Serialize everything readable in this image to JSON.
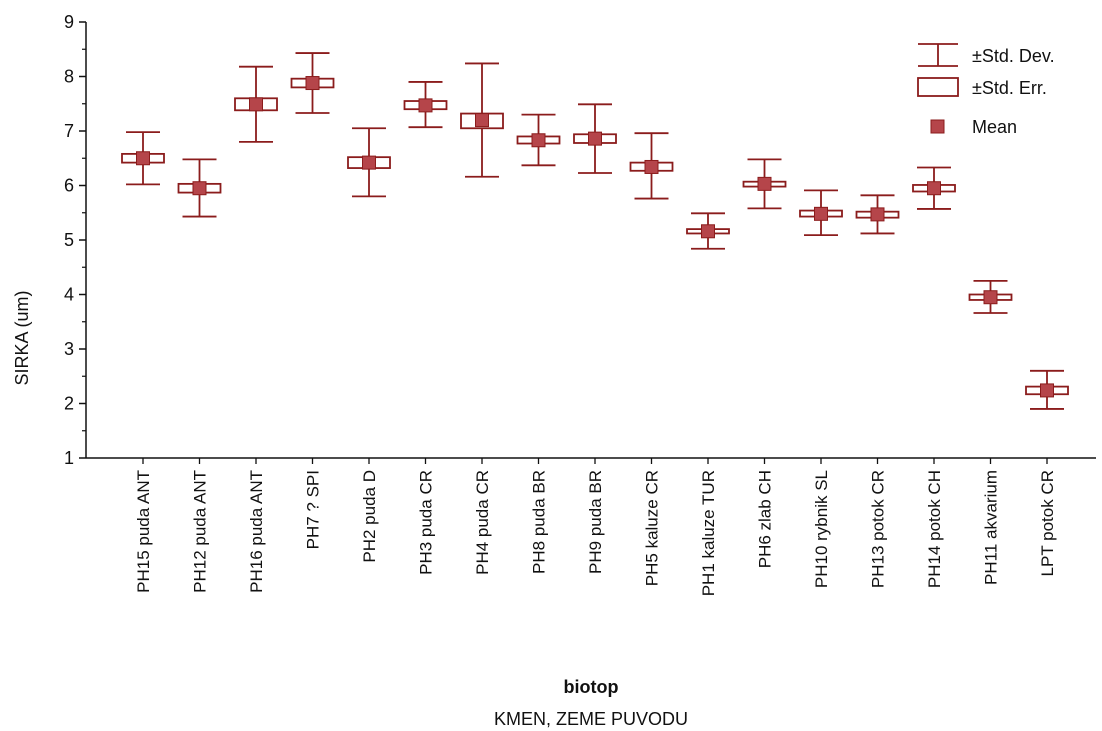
{
  "chart_data": {
    "type": "box",
    "ylabel": "SIRKA (um)",
    "xlabel": "biotop",
    "xlabel2": "KMEN, ZEME PUVODU",
    "ylim": [
      1,
      9
    ],
    "yticks": [
      1,
      2,
      3,
      4,
      5,
      6,
      7,
      8,
      9
    ],
    "legend": {
      "position": "top-right",
      "items": [
        "±Std. Dev.",
        "±Std. Err.",
        "Mean"
      ]
    },
    "colors": {
      "marker": "#b5454a",
      "line": "#8b1c1c",
      "axis": "#111111"
    },
    "categories": [
      {
        "label": "PH15  puda ANT",
        "mean": 6.5,
        "se_low": 6.42,
        "se_high": 6.58,
        "sd_low": 6.02,
        "sd_high": 6.98
      },
      {
        "label": "PH12 puda ANT",
        "mean": 5.95,
        "se_low": 5.87,
        "se_high": 6.03,
        "sd_low": 5.43,
        "sd_high": 6.48
      },
      {
        "label": "PH16 puda ANT",
        "mean": 7.49,
        "se_low": 7.38,
        "se_high": 7.6,
        "sd_low": 6.8,
        "sd_high": 8.18
      },
      {
        "label": "PH7 ? SPI",
        "mean": 7.88,
        "se_low": 7.8,
        "se_high": 7.96,
        "sd_low": 7.33,
        "sd_high": 8.43
      },
      {
        "label": "PH2 puda D",
        "mean": 6.42,
        "se_low": 6.32,
        "se_high": 6.52,
        "sd_low": 5.8,
        "sd_high": 7.05
      },
      {
        "label": "PH3 puda CR",
        "mean": 7.47,
        "se_low": 7.4,
        "se_high": 7.55,
        "sd_low": 7.07,
        "sd_high": 7.9
      },
      {
        "label": "PH4 puda CR",
        "mean": 7.2,
        "se_low": 7.05,
        "se_high": 7.32,
        "sd_low": 6.16,
        "sd_high": 8.24
      },
      {
        "label": "PH8  puda BR",
        "mean": 6.83,
        "se_low": 6.77,
        "se_high": 6.9,
        "sd_low": 6.37,
        "sd_high": 7.3
      },
      {
        "label": "PH9  puda BR",
        "mean": 6.86,
        "se_low": 6.78,
        "se_high": 6.94,
        "sd_low": 6.23,
        "sd_high": 7.49
      },
      {
        "label": "PH5 kaluze  CR",
        "mean": 6.34,
        "se_low": 6.27,
        "se_high": 6.42,
        "sd_low": 5.76,
        "sd_high": 6.96
      },
      {
        "label": "PH1  kaluze TUR",
        "mean": 5.16,
        "se_low": 5.12,
        "se_high": 5.2,
        "sd_low": 4.84,
        "sd_high": 5.49
      },
      {
        "label": "PH6 zlab CH",
        "mean": 6.03,
        "se_low": 5.98,
        "se_high": 6.07,
        "sd_low": 5.58,
        "sd_high": 6.48
      },
      {
        "label": "PH10 rybnik SL",
        "mean": 5.48,
        "se_low": 5.43,
        "se_high": 5.54,
        "sd_low": 5.09,
        "sd_high": 5.91
      },
      {
        "label": "PH13 potok CR",
        "mean": 5.47,
        "se_low": 5.41,
        "se_high": 5.52,
        "sd_low": 5.12,
        "sd_high": 5.82
      },
      {
        "label": "PH14  potok CH",
        "mean": 5.95,
        "se_low": 5.89,
        "se_high": 6.01,
        "sd_low": 5.57,
        "sd_high": 6.33
      },
      {
        "label": "PH11 akvarium",
        "mean": 3.95,
        "se_low": 3.9,
        "se_high": 4.0,
        "sd_low": 3.66,
        "sd_high": 4.25
      },
      {
        "label": "LPT potok CR",
        "mean": 2.24,
        "se_low": 2.17,
        "se_high": 2.31,
        "sd_low": 1.9,
        "sd_high": 2.6
      }
    ]
  }
}
